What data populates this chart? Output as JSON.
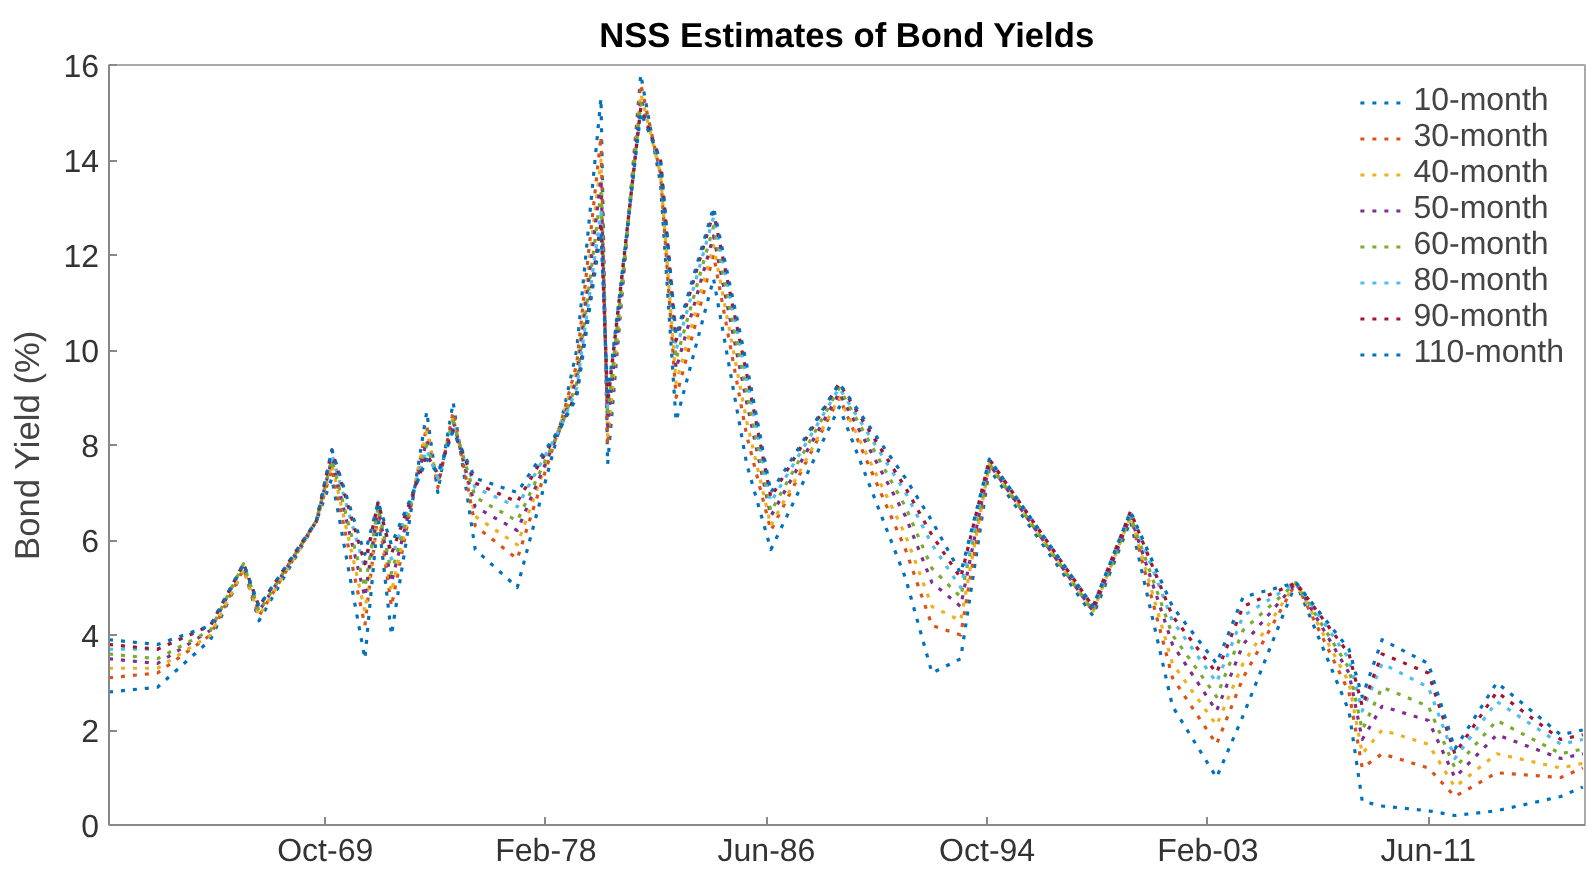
{
  "chart_data": {
    "type": "line",
    "title": "NSS Estimates of Bond Yields",
    "ylabel": "Bond Yield (%)",
    "x": [
      "1961-08",
      "1963-06",
      "1965-06",
      "1966-09",
      "1967-04",
      "1969-06",
      "1970-01",
      "1971-04",
      "1971-10",
      "1972-04",
      "1973-08",
      "1974-01",
      "1974-08",
      "1975-06",
      "1977-01",
      "1978-09",
      "1979-04",
      "1980-03",
      "1980-06",
      "1981-09",
      "1982-06",
      "1983-01",
      "1984-06",
      "1985-09",
      "1986-08",
      "1989-03",
      "1991-09",
      "1992-09",
      "1993-10",
      "1994-11",
      "1998-10",
      "2000-03",
      "2001-10",
      "2003-06",
      "2004-06",
      "2006-06",
      "2008-06",
      "2008-12",
      "2009-09",
      "2011-06",
      "2012-06",
      "2014-01",
      "2016-06",
      "2017-04"
    ],
    "series": [
      {
        "name": "10-month",
        "color": "#0072bd",
        "values": [
          2.8,
          2.9,
          3.9,
          5.4,
          4.3,
          6.4,
          7.3,
          3.5,
          6.5,
          4.0,
          8.7,
          7.0,
          8.9,
          5.8,
          5.0,
          8.5,
          10.0,
          15.3,
          7.6,
          15.8,
          13.5,
          8.5,
          11.5,
          7.6,
          5.8,
          8.8,
          5.2,
          3.2,
          3.5,
          7.5,
          4.4,
          6.4,
          2.5,
          1.0,
          2.3,
          5.1,
          2.4,
          0.5,
          0.4,
          0.3,
          0.2,
          0.3,
          0.6,
          0.8
        ]
      },
      {
        "name": "30-month",
        "color": "#d95319",
        "values": [
          3.1,
          3.2,
          4.0,
          5.4,
          4.4,
          6.4,
          7.5,
          4.2,
          6.6,
          4.6,
          8.4,
          7.1,
          8.7,
          6.3,
          5.6,
          8.5,
          9.7,
          14.5,
          8.0,
          15.6,
          13.7,
          9.0,
          12.0,
          8.2,
          6.2,
          9.0,
          5.8,
          4.2,
          4.0,
          7.6,
          4.5,
          6.5,
          3.1,
          1.7,
          3.1,
          5.1,
          2.8,
          1.2,
          1.5,
          1.2,
          0.6,
          1.1,
          1.0,
          1.2
        ]
      },
      {
        "name": "40-month",
        "color": "#edb120",
        "values": [
          3.3,
          3.3,
          4.0,
          5.4,
          4.4,
          6.4,
          7.6,
          4.5,
          6.6,
          4.9,
          8.3,
          7.2,
          8.6,
          6.5,
          5.9,
          8.5,
          9.6,
          14.0,
          8.2,
          15.4,
          13.7,
          9.3,
          12.2,
          8.5,
          6.3,
          9.0,
          6.1,
          4.6,
          4.3,
          7.6,
          4.5,
          6.5,
          3.4,
          2.1,
          3.4,
          5.1,
          3.0,
          1.5,
          2.0,
          1.7,
          0.8,
          1.5,
          1.2,
          1.3
        ]
      },
      {
        "name": "50-month",
        "color": "#7e2f8e",
        "values": [
          3.5,
          3.4,
          4.1,
          5.5,
          4.5,
          6.4,
          7.7,
          4.8,
          6.7,
          5.1,
          8.1,
          7.2,
          8.5,
          6.7,
          6.2,
          8.4,
          9.4,
          13.6,
          8.4,
          15.3,
          13.8,
          9.6,
          12.4,
          8.9,
          6.5,
          9.1,
          6.5,
          5.1,
          4.6,
          7.6,
          4.5,
          6.5,
          3.8,
          2.4,
          3.8,
          5.1,
          3.2,
          1.8,
          2.5,
          2.2,
          1.0,
          1.9,
          1.4,
          1.5
        ]
      },
      {
        "name": "60-month",
        "color": "#77ac30",
        "values": [
          3.6,
          3.5,
          4.1,
          5.5,
          4.5,
          6.4,
          7.7,
          5.0,
          6.7,
          5.3,
          8.0,
          7.3,
          8.5,
          6.9,
          6.4,
          8.4,
          9.3,
          13.3,
          8.6,
          15.2,
          13.9,
          9.8,
          12.6,
          9.1,
          6.6,
          9.2,
          6.7,
          5.4,
          4.8,
          7.6,
          4.5,
          6.5,
          4.0,
          2.7,
          4.1,
          5.1,
          3.3,
          2.0,
          2.9,
          2.5,
          1.2,
          2.2,
          1.5,
          1.6
        ]
      },
      {
        "name": "80-month",
        "color": "#4dbeee",
        "values": [
          3.7,
          3.7,
          4.2,
          5.5,
          4.6,
          6.4,
          7.8,
          5.4,
          6.8,
          5.6,
          7.9,
          7.3,
          8.4,
          7.1,
          6.7,
          8.4,
          9.2,
          12.9,
          8.8,
          15.1,
          13.9,
          10.0,
          12.8,
          9.4,
          6.8,
          9.2,
          7.0,
          5.9,
          5.0,
          7.7,
          4.6,
          6.6,
          4.3,
          3.0,
          4.4,
          5.1,
          3.5,
          2.4,
          3.4,
          2.9,
          1.4,
          2.6,
          1.7,
          1.8
        ]
      },
      {
        "name": "90-month",
        "color": "#a2142f",
        "values": [
          3.8,
          3.7,
          4.2,
          5.5,
          4.6,
          6.4,
          7.9,
          5.5,
          6.8,
          5.7,
          7.8,
          7.4,
          8.3,
          7.2,
          6.8,
          8.4,
          9.1,
          12.7,
          8.9,
          15.1,
          14.0,
          10.2,
          12.9,
          9.5,
          6.9,
          9.3,
          7.1,
          6.1,
          5.2,
          7.7,
          4.6,
          6.6,
          4.4,
          3.2,
          4.6,
          5.1,
          3.6,
          2.5,
          3.6,
          3.2,
          1.5,
          2.8,
          1.8,
          1.9
        ]
      },
      {
        "name": "110-month",
        "color": "#0072bd",
        "values": [
          3.9,
          3.8,
          4.2,
          5.5,
          4.6,
          6.4,
          7.9,
          5.7,
          6.8,
          5.9,
          7.7,
          7.4,
          8.3,
          7.3,
          7.0,
          8.4,
          9.0,
          12.5,
          9.0,
          15.0,
          14.0,
          10.3,
          13.0,
          9.7,
          7.0,
          9.3,
          7.3,
          6.4,
          5.3,
          7.7,
          4.6,
          6.6,
          4.6,
          3.4,
          4.8,
          5.1,
          3.7,
          2.7,
          3.9,
          3.4,
          1.6,
          3.0,
          1.9,
          2.0
        ]
      }
    ],
    "xlim": [
      "1961-08",
      "2017-05"
    ],
    "xticks": [
      {
        "value": "1969-10",
        "label": "Oct-69"
      },
      {
        "value": "1978-02",
        "label": "Feb-78"
      },
      {
        "value": "1986-06",
        "label": "Jun-86"
      },
      {
        "value": "1994-10",
        "label": "Oct-94"
      },
      {
        "value": "2003-02",
        "label": "Feb-03"
      },
      {
        "value": "2011-06",
        "label": "Jun-11"
      }
    ],
    "ylim": [
      0,
      16
    ],
    "yticks": [
      0,
      2,
      4,
      6,
      8,
      10,
      12,
      14,
      16
    ],
    "legend": "top right",
    "grid": false,
    "line_style": "dotted",
    "marker": "none"
  }
}
